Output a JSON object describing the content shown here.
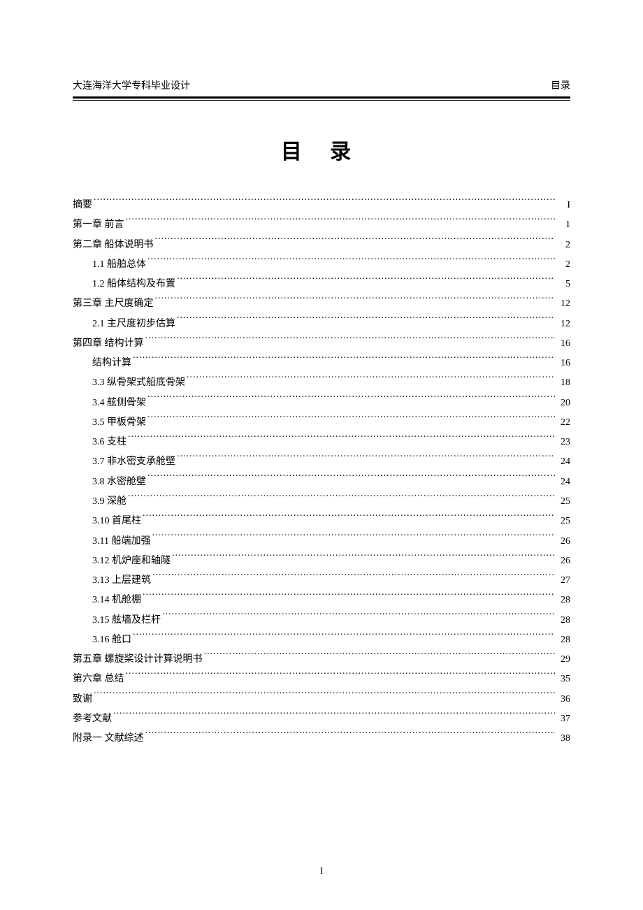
{
  "header": {
    "left": "大连海洋大学专科毕业设计",
    "right": "目录"
  },
  "title": "目 录",
  "toc": [
    {
      "level": 0,
      "label": "摘要",
      "page": "I"
    },
    {
      "level": 0,
      "label": "第一章 前言",
      "page": "1"
    },
    {
      "level": 0,
      "label": "第二章 船体说明书",
      "page": "2"
    },
    {
      "level": 1,
      "label": "1.1 船舶总体",
      "page": "2"
    },
    {
      "level": 1,
      "label": "1.2 船体结构及布置",
      "page": "5"
    },
    {
      "level": 0,
      "label": "第三章 主尺度确定",
      "page": "12"
    },
    {
      "level": 1,
      "label": "2.1 主尺度初步估算",
      "page": "12"
    },
    {
      "level": 0,
      "label": "第四章 结构计算",
      "page": "16"
    },
    {
      "level": 1,
      "label": "结构计算",
      "page": "16"
    },
    {
      "level": 1,
      "label": "3.3 纵骨架式船底骨架",
      "page": "18"
    },
    {
      "level": 1,
      "label": "3.4 舷侧骨架",
      "page": "20"
    },
    {
      "level": 1,
      "label": "3.5 甲板骨架",
      "page": "22"
    },
    {
      "level": 1,
      "label": "3.6 支柱",
      "page": "23"
    },
    {
      "level": 1,
      "label": "3.7 非水密支承舱壁",
      "page": "24"
    },
    {
      "level": 1,
      "label": "3.8 水密舱壁",
      "page": "24"
    },
    {
      "level": 1,
      "label": "3.9 深舱",
      "page": "25"
    },
    {
      "level": 1,
      "label": "3.10 首尾柱",
      "page": "25"
    },
    {
      "level": 1,
      "label": "3.11 船端加强",
      "page": "26"
    },
    {
      "level": 1,
      "label": "3.12 机炉座和轴隧",
      "page": "26"
    },
    {
      "level": 1,
      "label": "3.13 上层建筑",
      "page": "27"
    },
    {
      "level": 1,
      "label": "3.14 机舱棚",
      "page": "28"
    },
    {
      "level": 1,
      "label": "3.15 舷墙及栏杆",
      "page": "28"
    },
    {
      "level": 1,
      "label": "3.16 舱口",
      "page": "28"
    },
    {
      "level": 0,
      "label": "第五章 螺旋桨设计计算说明书",
      "page": "29"
    },
    {
      "level": 0,
      "label": "第六章 总结",
      "page": "35"
    },
    {
      "level": 0,
      "label": "致谢",
      "page": "36"
    },
    {
      "level": 0,
      "label": "参考文献",
      "page": "37"
    },
    {
      "level": 0,
      "label": "附录一 文献综述",
      "page": "38"
    }
  ],
  "footer": {
    "page_number": "I"
  },
  "colors": {
    "text": "#000000",
    "background": "#ffffff",
    "rule": "#000000"
  },
  "typography": {
    "body_font": "SimSun",
    "title_font": "SimHei",
    "title_fontsize": 30,
    "body_fontsize": 14,
    "line_height": 2.02
  }
}
